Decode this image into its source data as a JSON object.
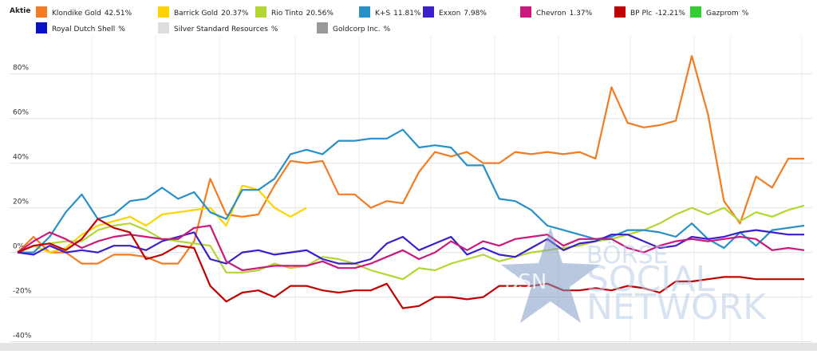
{
  "legend_title": "Aktie",
  "watermark": {
    "badge": "BSN",
    "lines": [
      "BÖRSE",
      "SOCIAL",
      "NETWORK"
    ]
  },
  "chart_data": {
    "type": "line",
    "categories": [
      null,
      null,
      null,
      null,
      null,
      null,
      null,
      null,
      null,
      null,
      null,
      null,
      null,
      null,
      null,
      null,
      null,
      null,
      null,
      null,
      null,
      null,
      null,
      null,
      null,
      null,
      null,
      null,
      null,
      null,
      null,
      null,
      null,
      null,
      null,
      null,
      null,
      null,
      null,
      null,
      null,
      null,
      null,
      null,
      null,
      null,
      null,
      null,
      null,
      null
    ],
    "ylim": [
      -43,
      97
    ],
    "yticks": [
      {
        "value": -40,
        "label": "-40%"
      },
      {
        "value": -20,
        "label": "-20%"
      },
      {
        "value": 0,
        "label": "0%"
      },
      {
        "value": 20,
        "label": "20%"
      },
      {
        "value": 40,
        "label": "40%"
      },
      {
        "value": 60,
        "label": "60%"
      },
      {
        "value": 80,
        "label": "80%"
      }
    ],
    "grid": true,
    "series": [
      {
        "name": "Klondike Gold",
        "change_label": "42.51%",
        "color": "#f47b20",
        "values": [
          0,
          7,
          0,
          0,
          -5,
          -5,
          -1,
          -1,
          -2,
          -5,
          -5,
          5,
          33,
          17,
          16,
          17,
          30,
          41,
          40,
          41,
          26,
          26,
          20,
          23,
          22,
          36,
          45,
          43,
          45,
          40,
          40,
          45,
          44,
          45,
          44,
          45,
          42,
          74,
          58,
          56,
          57,
          59,
          88,
          62,
          23,
          13,
          34,
          29,
          42,
          42
        ]
      },
      {
        "name": "Barrick Gold",
        "change_label": "20.37%",
        "color": "#ffd200",
        "values": [
          0,
          3,
          0,
          2,
          8,
          12,
          14,
          16,
          12,
          17,
          18,
          19,
          20,
          12,
          30,
          28,
          20,
          16,
          20,
          null,
          null,
          null,
          null,
          null,
          null,
          null,
          null,
          null,
          null,
          null,
          null,
          null,
          null,
          null,
          null,
          null,
          null,
          null,
          null,
          null,
          null,
          null,
          null,
          null,
          null,
          null,
          null,
          null,
          null,
          null
        ]
      },
      {
        "name": "Rio Tinto",
        "change_label": "20.56%",
        "color": "#b2d733",
        "values": [
          0,
          3,
          4,
          5,
          5,
          10,
          12,
          13,
          10,
          6,
          5,
          4,
          3,
          -9,
          -9,
          -8,
          -5,
          -7,
          -6,
          -2,
          -3,
          -5,
          -8,
          -10,
          -12,
          -7,
          -8,
          -5,
          -3,
          -1,
          -4,
          -2,
          0,
          1,
          2,
          3,
          5,
          6,
          8,
          10,
          13,
          17,
          20,
          17,
          20,
          14,
          18,
          16,
          19,
          21
        ]
      },
      {
        "name": "K+S",
        "change_label": "11.81%",
        "color": "#2790c9",
        "values": [
          0,
          0,
          7,
          18,
          26,
          15,
          17,
          23,
          24,
          29,
          24,
          27,
          18,
          15,
          28,
          28,
          33,
          44,
          46,
          44,
          50,
          50,
          51,
          51,
          55,
          47,
          48,
          47,
          39,
          39,
          24,
          23,
          19,
          12,
          10,
          8,
          6,
          7,
          10,
          10,
          9,
          7,
          13,
          6,
          2,
          9,
          3,
          10,
          11,
          12
        ]
      },
      {
        "name": "Exxon",
        "change_label": "7.98%",
        "color": "#3a20c8",
        "values": [
          0,
          -1,
          3,
          0,
          1,
          0,
          3,
          3,
          1,
          5,
          7,
          9,
          -3,
          -5,
          0,
          1,
          -1,
          0,
          1,
          -3,
          -5,
          -5,
          -3,
          4,
          7,
          1,
          4,
          7,
          -1,
          2,
          -1,
          -2,
          2,
          6,
          1,
          4,
          5,
          8,
          8,
          5,
          2,
          3,
          7,
          6,
          7,
          9,
          10,
          9,
          8,
          8
        ]
      },
      {
        "name": "Chevron",
        "change_label": "1.37%",
        "color": "#c9197c",
        "values": [
          0,
          5,
          9,
          6,
          2,
          5,
          7,
          8,
          7,
          6,
          6,
          11,
          12,
          -4,
          -8,
          -7,
          -6,
          -6,
          -6,
          -4,
          -7,
          -7,
          -5,
          -2,
          1,
          -3,
          0,
          5,
          1,
          5,
          3,
          6,
          7,
          8,
          3,
          6,
          6,
          6,
          2,
          0,
          3,
          5,
          6,
          5,
          6,
          7,
          6,
          1,
          2,
          1
        ]
      },
      {
        "name": "BP Plc",
        "change_label": "-12.21%",
        "color": "#c00000",
        "values": [
          0,
          3,
          4,
          1,
          6,
          15,
          11,
          9,
          -3,
          -1,
          3,
          2,
          -15,
          -22,
          -18,
          -17,
          -20,
          -15,
          -15,
          -17,
          -18,
          -17,
          -17,
          -14,
          -25,
          -24,
          -20,
          -20,
          -21,
          -20,
          -15,
          -15,
          -15,
          -14,
          -17,
          -17,
          -16,
          -17,
          -15,
          -16,
          -18,
          -13,
          -13,
          -12,
          -11,
          -11,
          -12,
          -12,
          -12,
          -12
        ]
      },
      {
        "name": "Gazprom",
        "change_label": "%",
        "color": "#33cc33"
      },
      {
        "name": "Royal Dutch Shell",
        "change_label": "%",
        "color": "#0a10c8"
      },
      {
        "name": "Silver Standard Resources",
        "change_label": "%",
        "color": "#dddddd"
      },
      {
        "name": "Goldcorp Inc.",
        "change_label": "%",
        "color": "#999999"
      }
    ]
  }
}
